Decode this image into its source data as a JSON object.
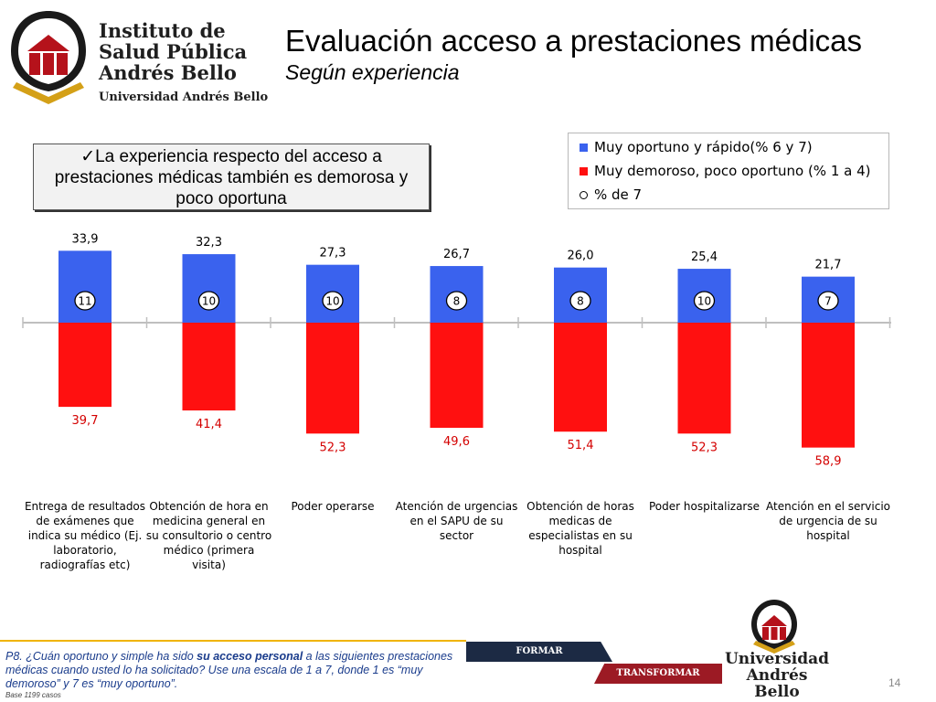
{
  "header": {
    "institute_line1": "Instituto de",
    "institute_line2": "Salud Pública",
    "institute_line3": "Andrés Bello",
    "institute_line4": "Universidad Andrés Bello",
    "title": "Evaluación acceso a prestaciones médicas",
    "subtitle": "Según experiencia"
  },
  "callout": {
    "text": "✓La experiencia respecto del acceso a prestaciones médicas también es demorosa y poco oportuna"
  },
  "legend": {
    "items": [
      {
        "label": "Muy oportuno y rápido(% 6 y 7)",
        "color": "#3a62ee"
      },
      {
        "label": "Muy demoroso, poco oportuno (% 1 a 4)",
        "color": "#ff1010"
      },
      {
        "label": "% de 7",
        "color": "#000000"
      }
    ]
  },
  "chart_data": {
    "type": "bar",
    "categories": [
      "Entrega de resultados de exámenes que indica su médico (Ej. laboratorio, radiografías etc)",
      "Obtención de hora en medicina general en su consultorio o centro médico (primera visita)",
      "Poder operarse",
      "Atención de urgencias en el SAPU de su sector",
      "Obtención de horas medicas de especialistas en su hospital",
      "Poder hospitalizarse",
      "Atención en el servicio de urgencia de su hospital"
    ],
    "series": [
      {
        "name": "Muy oportuno y rápido(% 6 y 7)",
        "values": [
          33.9,
          32.3,
          27.3,
          26.7,
          26.0,
          25.4,
          21.7
        ],
        "labels": [
          "33,9",
          "32,3",
          "27,3",
          "26,7",
          "26,0",
          "25,4",
          "21,7"
        ],
        "color": "#3a62ee"
      },
      {
        "name": "Muy demoroso, poco oportuno (% 1 a 4)",
        "values": [
          39.7,
          41.4,
          52.3,
          49.6,
          51.4,
          52.3,
          58.9
        ],
        "labels": [
          "39,7",
          "41,4",
          "52,3",
          "49,6",
          "51,4",
          "52,3",
          "58,9"
        ],
        "color": "#ff1010"
      },
      {
        "name": "% de 7",
        "values": [
          11,
          10,
          10,
          8,
          8,
          10,
          7
        ],
        "labels": [
          "11",
          "10",
          "10",
          "8",
          "8",
          "10",
          "7"
        ]
      }
    ]
  },
  "footer": {
    "question_part1": "P8. ¿Cuán oportuno y simple ha sido ",
    "question_bold": "su acceso personal",
    "question_part2": " a las siguientes prestaciones médicas cuando usted lo ha solicitado? Use una escala de 1 a 7, donde 1 es “muy demoroso” y 7 es “muy oportuno”.",
    "base": "Base 1199 casos",
    "band1": "FORMAR",
    "band2": "TRANSFORMAR",
    "university_line1": "Universidad",
    "university_line2": "Andrés Bello",
    "page_number": "14"
  }
}
